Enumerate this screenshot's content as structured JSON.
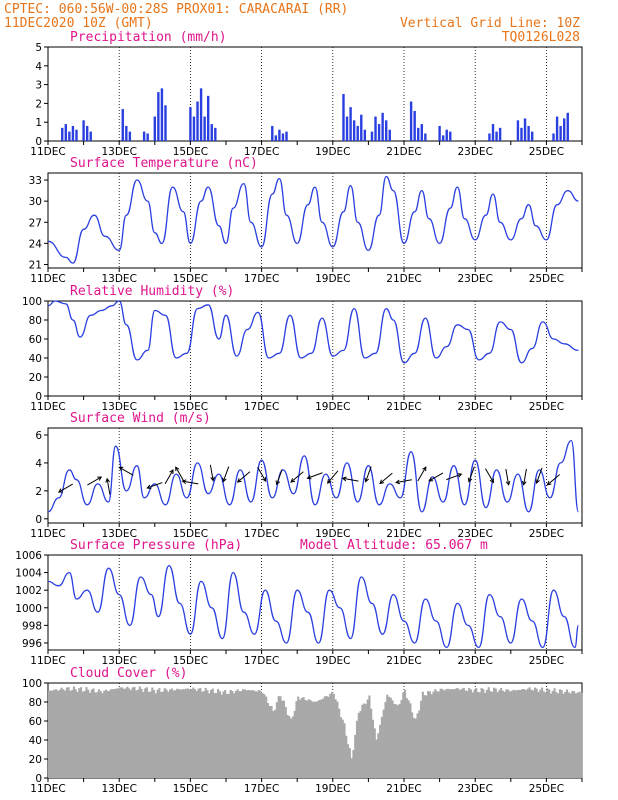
{
  "header": {
    "line1_left": "CPTEC:   060:56W-00:28S   PROX01: CARACARAI (RR)",
    "line2_left": "11DEC2020 10Z (GMT)",
    "line2_right": "Vertical Grid Line: 10Z",
    "line3_right": "TQ0126L028"
  },
  "colors": {
    "header": "#e8751a",
    "title": "#e0148c",
    "series": "#2a3fe0",
    "cloud": "#a8a8a8",
    "grid": "#000000"
  },
  "chart_data": [
    {
      "type": "bar",
      "title": "Precipitation (mm/h)",
      "x_tick_labels": [
        "11DEC",
        "13DEC",
        "15DEC",
        "17DEC",
        "19DEC",
        "21DEC",
        "23DEC",
        "25DEC"
      ],
      "y_ticks": [
        0,
        1,
        2,
        3,
        4,
        5
      ],
      "ylim": [
        0,
        5
      ],
      "x_days": [
        0.4,
        0.5,
        0.6,
        0.7,
        0.8,
        1.0,
        1.1,
        1.2,
        2.1,
        2.2,
        2.3,
        2.7,
        2.8,
        3.0,
        3.1,
        3.2,
        3.3,
        4.0,
        4.1,
        4.2,
        4.3,
        4.4,
        4.5,
        4.6,
        4.7,
        6.3,
        6.4,
        6.5,
        6.6,
        6.7,
        8.3,
        8.4,
        8.5,
        8.6,
        8.7,
        8.8,
        8.9,
        9.1,
        9.2,
        9.3,
        9.4,
        9.5,
        9.6,
        10.2,
        10.3,
        10.4,
        10.5,
        10.6,
        11.0,
        11.1,
        11.2,
        11.3,
        12.4,
        12.5,
        12.6,
        12.7,
        13.2,
        13.3,
        13.4,
        13.5,
        13.6,
        14.2,
        14.3,
        14.4,
        14.5,
        14.6
      ],
      "values": [
        0.7,
        0.9,
        0.5,
        0.8,
        0.6,
        1.1,
        0.8,
        0.5,
        1.7,
        0.8,
        0.5,
        0.5,
        0.4,
        1.3,
        2.6,
        2.8,
        1.9,
        1.8,
        1.3,
        2.1,
        2.8,
        1.3,
        2.4,
        0.9,
        0.7,
        0.8,
        0.3,
        0.6,
        0.4,
        0.5,
        2.5,
        1.3,
        1.8,
        1.1,
        0.8,
        1.4,
        0.6,
        0.5,
        1.3,
        0.9,
        1.5,
        1.1,
        0.6,
        2.1,
        1.6,
        0.7,
        0.9,
        0.4,
        0.8,
        0.3,
        0.6,
        0.5,
        0.4,
        0.9,
        0.5,
        0.7,
        1.1,
        0.7,
        1.2,
        0.8,
        0.5,
        0.4,
        1.3,
        0.8,
        1.2,
        1.5
      ]
    },
    {
      "type": "line",
      "title": "Surface Temperature (nC)",
      "x_tick_labels": [
        "11DEC",
        "13DEC",
        "15DEC",
        "17DEC",
        "19DEC",
        "21DEC",
        "23DEC",
        "25DEC"
      ],
      "y_ticks": [
        21,
        24,
        27,
        30,
        33
      ],
      "ylim": [
        20.5,
        34
      ],
      "x_days": [
        0.0,
        0.5,
        0.7,
        1.0,
        1.3,
        1.6,
        2.0,
        2.2,
        2.5,
        2.8,
        3.0,
        3.2,
        3.5,
        3.8,
        4.0,
        4.3,
        4.5,
        4.8,
        5.0,
        5.2,
        5.5,
        5.7,
        6.0,
        6.3,
        6.5,
        6.7,
        7.0,
        7.3,
        7.5,
        7.7,
        8.0,
        8.3,
        8.5,
        8.7,
        9.0,
        9.3,
        9.5,
        9.7,
        10.0,
        10.3,
        10.5,
        10.7,
        11.0,
        11.3,
        11.5,
        11.7,
        12.0,
        12.3,
        12.5,
        12.7,
        13.0,
        13.3,
        13.5,
        13.7,
        14.0,
        14.3,
        14.6,
        14.9
      ],
      "values": [
        24.3,
        22.0,
        21.2,
        26.0,
        28.0,
        25.0,
        23.0,
        28.0,
        33.0,
        30.0,
        25.5,
        24.0,
        32.0,
        28.5,
        24.0,
        30.0,
        32.0,
        26.5,
        24.0,
        29.0,
        32.5,
        27.0,
        23.5,
        31.0,
        33.2,
        28.0,
        24.0,
        29.5,
        32.0,
        27.0,
        23.5,
        28.5,
        32.2,
        27.0,
        23.0,
        28.0,
        33.5,
        31.5,
        24.0,
        28.5,
        31.5,
        27.5,
        24.0,
        29.0,
        32.0,
        27.5,
        24.5,
        28.0,
        31.0,
        27.0,
        24.5,
        27.5,
        29.5,
        26.5,
        24.5,
        29.5,
        31.5,
        30.0
      ]
    },
    {
      "type": "line",
      "title": "Relative Humidity (%)",
      "x_tick_labels": [
        "11DEC",
        "13DEC",
        "15DEC",
        "17DEC",
        "19DEC",
        "21DEC",
        "23DEC",
        "25DEC"
      ],
      "y_ticks": [
        0,
        20,
        40,
        60,
        80,
        100
      ],
      "ylim": [
        0,
        100
      ],
      "x_days": [
        0.0,
        0.2,
        0.5,
        0.7,
        0.9,
        1.2,
        1.5,
        1.8,
        2.0,
        2.2,
        2.5,
        2.8,
        3.0,
        3.3,
        3.6,
        3.9,
        4.2,
        4.5,
        4.8,
        5.0,
        5.3,
        5.6,
        5.9,
        6.2,
        6.5,
        6.8,
        7.1,
        7.4,
        7.7,
        8.0,
        8.3,
        8.6,
        8.9,
        9.2,
        9.5,
        9.7,
        10.0,
        10.3,
        10.6,
        10.9,
        11.2,
        11.5,
        11.8,
        12.1,
        12.4,
        12.7,
        13.0,
        13.3,
        13.6,
        13.9,
        14.2,
        14.5,
        14.9
      ],
      "values": [
        95,
        100,
        97,
        80,
        62,
        85,
        90,
        95,
        100,
        75,
        38,
        48,
        90,
        85,
        40,
        45,
        92,
        96,
        60,
        85,
        42,
        70,
        88,
        40,
        45,
        85,
        40,
        45,
        82,
        42,
        48,
        92,
        40,
        45,
        92,
        80,
        35,
        45,
        82,
        40,
        52,
        75,
        70,
        38,
        45,
        78,
        70,
        35,
        50,
        78,
        60,
        55,
        48
      ]
    },
    {
      "type": "line",
      "title": "Surface Wind (m/s)",
      "x_tick_labels": [
        "11DEC",
        "13DEC",
        "15DEC",
        "17DEC",
        "19DEC",
        "21DEC",
        "23DEC",
        "25DEC"
      ],
      "y_ticks": [
        0,
        2,
        4,
        6
      ],
      "ylim": [
        -0.3,
        6.5
      ],
      "x_days": [
        0.0,
        0.3,
        0.6,
        0.8,
        1.1,
        1.4,
        1.7,
        1.9,
        2.2,
        2.5,
        2.7,
        3.0,
        3.3,
        3.6,
        3.9,
        4.2,
        4.5,
        4.8,
        5.1,
        5.4,
        5.7,
        6.0,
        6.3,
        6.6,
        6.9,
        7.2,
        7.5,
        7.8,
        8.1,
        8.4,
        8.7,
        9.0,
        9.3,
        9.6,
        9.9,
        10.2,
        10.5,
        10.8,
        11.1,
        11.4,
        11.7,
        12.0,
        12.3,
        12.6,
        12.9,
        13.2,
        13.5,
        13.8,
        14.1,
        14.4,
        14.7,
        14.9
      ],
      "values": [
        0.5,
        1.5,
        3.5,
        2.8,
        1.0,
        2.5,
        1.2,
        5.2,
        2.0,
        3.8,
        1.5,
        2.5,
        1.0,
        3.2,
        1.5,
        4.0,
        1.8,
        3.2,
        1.0,
        3.5,
        1.2,
        4.2,
        1.5,
        3.5,
        1.8,
        4.5,
        1.0,
        3.2,
        1.5,
        4.0,
        1.2,
        3.8,
        1.0,
        2.5,
        1.5,
        4.8,
        0.5,
        3.0,
        1.2,
        3.8,
        1.0,
        4.2,
        0.8,
        3.5,
        1.2,
        3.2,
        0.5,
        3.5,
        1.5,
        4.0,
        5.6,
        0.5
      ],
      "arrows": {
        "x_days": [
          0.5,
          1.3,
          1.7,
          2.2,
          3.0,
          3.4,
          3.7,
          4.0,
          4.6,
          5.0,
          5.5,
          6.0,
          6.5,
          7.0,
          7.5,
          8.0,
          8.5,
          9.0,
          9.5,
          10.0,
          10.5,
          10.9,
          11.4,
          11.9,
          12.4,
          12.9,
          13.4,
          13.8,
          14.2
        ],
        "speed": [
          2.2,
          2.7,
          2.3,
          3.4,
          2.4,
          3.0,
          3.2,
          2.6,
          3.3,
          3.2,
          3.0,
          3.2,
          3.0,
          3.0,
          3.1,
          3.0,
          2.8,
          3.2,
          2.9,
          2.7,
          3.2,
          3.0,
          3.0,
          3.2,
          3.1,
          3.0,
          3.0,
          3.1,
          2.8
        ],
        "dir_deg": [
          210,
          30,
          100,
          150,
          200,
          60,
          120,
          170,
          280,
          250,
          220,
          300,
          250,
          220,
          200,
          230,
          170,
          250,
          220,
          190,
          60,
          210,
          20,
          250,
          300,
          280,
          260,
          250,
          220
        ]
      }
    },
    {
      "type": "line",
      "title": "Surface Pressure (hPa)",
      "annotation": "Model Altitude: 65.067 m",
      "x_tick_labels": [
        "11DEC",
        "13DEC",
        "15DEC",
        "17DEC",
        "19DEC",
        "21DEC",
        "23DEC",
        "25DEC"
      ],
      "y_ticks": [
        996,
        998,
        1000,
        1002,
        1004,
        1006
      ],
      "ylim": [
        995.2,
        1006
      ],
      "x_days": [
        0.0,
        0.3,
        0.6,
        0.8,
        1.1,
        1.4,
        1.7,
        2.0,
        2.3,
        2.6,
        2.9,
        3.1,
        3.4,
        3.7,
        4.0,
        4.3,
        4.6,
        4.9,
        5.2,
        5.5,
        5.8,
        6.1,
        6.4,
        6.7,
        7.0,
        7.3,
        7.6,
        7.9,
        8.2,
        8.5,
        8.8,
        9.1,
        9.4,
        9.7,
        10.0,
        10.3,
        10.6,
        10.9,
        11.2,
        11.5,
        11.8,
        12.1,
        12.4,
        12.7,
        13.0,
        13.3,
        13.6,
        13.9,
        14.2,
        14.5,
        14.8,
        14.9
      ],
      "values": [
        1003.0,
        1002.5,
        1004.0,
        1001.0,
        1002.0,
        999.5,
        1004.5,
        1001.5,
        998.0,
        1003.5,
        1001.5,
        999.0,
        1004.8,
        1000.5,
        997.0,
        1003.0,
        1000.0,
        996.5,
        1004.0,
        999.5,
        997.0,
        1002.0,
        998.5,
        996.0,
        1002.0,
        999.5,
        996.0,
        1002.0,
        1000.0,
        996.5,
        1003.5,
        1000.5,
        997.0,
        1001.5,
        998.5,
        996.0,
        1001.0,
        998.5,
        995.5,
        1000.5,
        998.0,
        995.5,
        1001.5,
        999.0,
        996.0,
        1001.0,
        998.5,
        995.5,
        1002.0,
        999.0,
        995.5,
        998.0
      ]
    },
    {
      "type": "bar",
      "title": "Cloud Cover (%)",
      "x_tick_labels": [
        "11DEC",
        "13DEC",
        "15DEC",
        "17DEC",
        "19DEC",
        "21DEC",
        "23DEC",
        "25DEC"
      ],
      "y_ticks": [
        0,
        20,
        40,
        60,
        80,
        100
      ],
      "ylim": [
        0,
        100
      ],
      "profile_days": [
        0.0,
        0.5,
        1.0,
        1.5,
        2.0,
        2.5,
        3.0,
        3.5,
        4.0,
        4.5,
        5.0,
        5.5,
        6.0,
        6.3,
        6.5,
        6.8,
        7.0,
        7.5,
        8.0,
        8.3,
        8.5,
        8.7,
        9.0,
        9.2,
        9.5,
        9.8,
        10.0,
        10.3,
        10.5,
        11.0,
        11.5,
        12.0,
        12.5,
        13.0,
        13.5,
        14.0,
        14.5,
        14.9
      ],
      "profile_values": [
        92,
        94,
        93,
        91,
        95,
        94,
        92,
        93,
        94,
        92,
        90,
        93,
        91,
        70,
        88,
        60,
        85,
        80,
        90,
        55,
        20,
        70,
        85,
        40,
        88,
        75,
        92,
        60,
        88,
        93,
        94,
        92,
        93,
        92,
        94,
        92,
        91,
        90
      ]
    }
  ]
}
